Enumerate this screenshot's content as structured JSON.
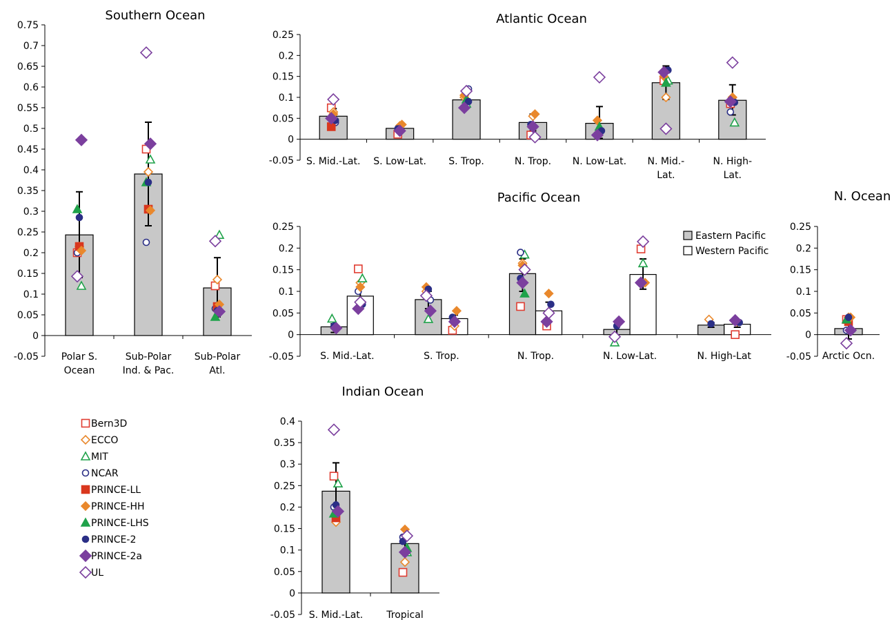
{
  "legend": {
    "items": [
      {
        "name": "Bern3D",
        "marker": "square",
        "filled": false,
        "color": "#e03c31"
      },
      {
        "name": "ECCO",
        "marker": "diamond",
        "filled": false,
        "color": "#e9882c"
      },
      {
        "name": "MIT",
        "marker": "triangle",
        "filled": false,
        "color": "#1fa24a"
      },
      {
        "name": "NCAR",
        "marker": "circle",
        "filled": false,
        "color": "#2b2f86"
      },
      {
        "name": "PRINCE-LL",
        "marker": "square",
        "filled": true,
        "color": "#d9371e"
      },
      {
        "name": "PRINCE-HH",
        "marker": "diamond",
        "filled": true,
        "color": "#e9882c"
      },
      {
        "name": "PRINCE-LHS",
        "marker": "triangle",
        "filled": true,
        "color": "#1fa24a"
      },
      {
        "name": "PRINCE-2",
        "marker": "circle",
        "filled": true,
        "color": "#2b2f86"
      },
      {
        "name": "PRINCE-2a",
        "marker": "diamond",
        "filled": true,
        "color": "#7b3f9e"
      },
      {
        "name": "UL",
        "marker": "diamond",
        "filled": false,
        "color": "#7b3f9e"
      }
    ]
  },
  "pacific_legend": [
    {
      "label": "Eastern Pacific",
      "fill": "#c8c8c8"
    },
    {
      "label": "Western Pacific",
      "fill": "#ffffff"
    }
  ],
  "chart_data": [
    {
      "type": "bar",
      "title": "Southern Ocean",
      "categories": [
        "Polar S.\nOcean",
        "Sub-Polar\nInd. & Pac.",
        "Sub-Polar\nAtl."
      ],
      "ylim": [
        -0.05,
        0.75
      ],
      "ticks": [
        "-0.05",
        "0",
        "0.05",
        "0.1",
        "0.15",
        "0.2",
        "0.25",
        "0.3",
        "0.35",
        "0.4",
        "0.45",
        "0.5",
        "0.55",
        "0.6",
        "0.65",
        "0.7",
        "0.75"
      ],
      "series": [
        {
          "values": [
            0.243,
            0.39,
            0.115
          ],
          "err": [
            [
              0.14,
              0.347
            ],
            [
              0.265,
              0.515
            ],
            [
              0.045,
              0.188
            ]
          ]
        }
      ],
      "points": [
        [
          [
            "Bern3D",
            0.2
          ],
          [
            "ECCO",
            0.215
          ],
          [
            "MIT",
            0.12
          ],
          [
            "NCAR",
            0.2
          ],
          [
            "PRINCE-LL",
            0.215
          ],
          [
            "PRINCE-HH",
            0.205
          ],
          [
            "PRINCE-LHS",
            0.305
          ],
          [
            "PRINCE-2",
            0.285
          ],
          [
            "PRINCE-2a",
            0.472
          ],
          [
            "UL",
            0.143
          ]
        ],
        [
          [
            "Bern3D",
            0.45
          ],
          [
            "ECCO",
            0.395
          ],
          [
            "MIT",
            0.425
          ],
          [
            "NCAR",
            0.225
          ],
          [
            "PRINCE-LL",
            0.305
          ],
          [
            "PRINCE-HH",
            0.302
          ],
          [
            "PRINCE-LHS",
            0.37
          ],
          [
            "PRINCE-2",
            0.37
          ],
          [
            "PRINCE-2a",
            0.463
          ],
          [
            "UL",
            0.683
          ]
        ],
        [
          [
            "Bern3D",
            0.12
          ],
          [
            "ECCO",
            0.135
          ],
          [
            "MIT",
            0.243
          ],
          [
            "NCAR",
            0.065
          ],
          [
            "PRINCE-LL",
            0.07
          ],
          [
            "PRINCE-HH",
            0.075
          ],
          [
            "PRINCE-LHS",
            0.045
          ],
          [
            "PRINCE-2",
            0.06
          ],
          [
            "PRINCE-2a",
            0.058
          ],
          [
            "UL",
            0.228
          ]
        ]
      ]
    },
    {
      "type": "bar",
      "title": "Atlantic Ocean",
      "categories": [
        "S. Mid.-Lat.",
        "S. Low-Lat.",
        "S. Trop.",
        "N. Trop.",
        "N. Low-Lat.",
        "N. Mid.-\nLat.",
        "N. High-\nLat."
      ],
      "ylim": [
        -0.05,
        0.25
      ],
      "ticks": [
        "-0.05",
        "0",
        "0.05",
        "0.1",
        "0.15",
        "0.2",
        "0.25"
      ],
      "series": [
        {
          "values": [
            0.055,
            0.026,
            0.094,
            0.04,
            0.038,
            0.135,
            0.093
          ],
          "err": [
            [
              0.035,
              0.073
            ],
            [
              0.018,
              0.034
            ],
            [
              0.075,
              0.112
            ],
            [
              0.02,
              0.06
            ],
            [
              0.002,
              0.078
            ],
            [
              0.095,
              0.175
            ],
            [
              0.058,
              0.13
            ]
          ]
        }
      ],
      "points": [
        [
          [
            "Bern3D",
            0.075
          ],
          [
            "ECCO",
            0.065
          ],
          [
            "NCAR",
            0.04
          ],
          [
            "PRINCE-LL",
            0.03
          ],
          [
            "PRINCE-HH",
            0.06
          ],
          [
            "PRINCE-2",
            0.045
          ],
          [
            "PRINCE-2a",
            0.05
          ],
          [
            "UL",
            0.095
          ]
        ],
        [
          [
            "Bern3D",
            0.012
          ],
          [
            "ECCO",
            0.032
          ],
          [
            "PRINCE-HH",
            0.035
          ],
          [
            "PRINCE-2",
            0.025
          ],
          [
            "PRINCE-2a",
            0.02
          ]
        ],
        [
          [
            "ECCO",
            0.1
          ],
          [
            "MIT",
            0.085
          ],
          [
            "NCAR",
            0.12
          ],
          [
            "PRINCE-HH",
            0.105
          ],
          [
            "PRINCE-LHS",
            0.095
          ],
          [
            "PRINCE-2",
            0.09
          ],
          [
            "PRINCE-2a",
            0.075
          ],
          [
            "UL",
            0.115
          ]
        ],
        [
          [
            "Bern3D",
            0.01
          ],
          [
            "ECCO",
            0.055
          ],
          [
            "PRINCE-HH",
            0.06
          ],
          [
            "PRINCE-2",
            0.035
          ],
          [
            "PRINCE-2a",
            0.03
          ],
          [
            "UL",
            0.005
          ]
        ],
        [
          [
            "PRINCE-HH",
            0.045
          ],
          [
            "PRINCE-LHS",
            0.03
          ],
          [
            "PRINCE-2",
            0.02
          ],
          [
            "PRINCE-2a",
            0.01
          ],
          [
            "UL",
            0.148
          ]
        ],
        [
          [
            "Bern3D",
            0.14
          ],
          [
            "ECCO",
            0.1
          ],
          [
            "MIT",
            0.14
          ],
          [
            "PRINCE-HH",
            0.15
          ],
          [
            "PRINCE-LHS",
            0.135
          ],
          [
            "PRINCE-2",
            0.165
          ],
          [
            "PRINCE-2a",
            0.16
          ],
          [
            "UL",
            0.025
          ]
        ],
        [
          [
            "Bern3D",
            0.085
          ],
          [
            "ECCO",
            0.1
          ],
          [
            "MIT",
            0.04
          ],
          [
            "NCAR",
            0.065
          ],
          [
            "PRINCE-HH",
            0.1
          ],
          [
            "PRINCE-2",
            0.088
          ],
          [
            "PRINCE-2a",
            0.09
          ],
          [
            "UL",
            0.183
          ]
        ]
      ]
    },
    {
      "type": "bar",
      "title": "Pacific Ocean",
      "categories": [
        "S. Mid.-Lat.",
        "S. Trop.",
        "N. Trop.",
        "N. Low-Lat.",
        "N. High-Lat"
      ],
      "ylim": [
        -0.05,
        0.25
      ],
      "ticks": [
        "-0.05",
        "0",
        "0.05",
        "0.1",
        "0.15",
        "0.2",
        "0.25"
      ],
      "series": [
        {
          "name": "Eastern Pacific",
          "values": [
            0.018,
            0.081,
            0.141,
            0.012,
            0.022
          ],
          "err": [
            [
              0.005,
              0.025
            ],
            [
              0.06,
              0.1
            ],
            [
              0.1,
              0.175
            ],
            [
              -0.005,
              0.02
            ],
            [
              0.017,
              0.028
            ]
          ]
        },
        {
          "name": "Western Pacific",
          "values": [
            0.089,
            0.037,
            0.055,
            0.139,
            0.024
          ],
          "err": [
            [
              0.06,
              0.12
            ],
            [
              0.02,
              0.045
            ],
            [
              0.03,
              0.075
            ],
            [
              0.105,
              0.175
            ],
            [
              0.017,
              0.03
            ]
          ]
        }
      ],
      "points": [
        [
          [
            [
              "MIT",
              0.037
            ],
            [
              "PRINCE-2",
              0.02
            ],
            [
              "PRINCE-2a",
              0.015
            ]
          ],
          [
            [
              "Bern3D",
              0.152
            ],
            [
              "ECCO",
              0.12
            ],
            [
              "MIT",
              0.13
            ],
            [
              "NCAR",
              0.1
            ],
            [
              "PRINCE-HH",
              0.11
            ],
            [
              "PRINCE-2",
              0.07
            ],
            [
              "PRINCE-2a",
              0.06
            ],
            [
              "UL",
              0.075
            ]
          ]
        ],
        [
          [
            [
              "ECCO",
              0.1
            ],
            [
              "MIT",
              0.036
            ],
            [
              "NCAR",
              0.08
            ],
            [
              "PRINCE-HH",
              0.11
            ],
            [
              "PRINCE-2",
              0.105
            ],
            [
              "PRINCE-2a",
              0.055
            ],
            [
              "UL",
              0.09
            ]
          ],
          [
            [
              "Bern3D",
              0.01
            ],
            [
              "ECCO",
              0.02
            ],
            [
              "PRINCE-HH",
              0.055
            ],
            [
              "PRINCE-2",
              0.04
            ],
            [
              "PRINCE-2a",
              0.03
            ]
          ]
        ],
        [
          [
            [
              "Bern3D",
              0.065
            ],
            [
              "ECCO",
              0.165
            ],
            [
              "MIT",
              0.185
            ],
            [
              "NCAR",
              0.19
            ],
            [
              "PRINCE-HH",
              0.16
            ],
            [
              "PRINCE-LHS",
              0.095
            ],
            [
              "PRINCE-2",
              0.13
            ],
            [
              "PRINCE-2a",
              0.12
            ],
            [
              "UL",
              0.15
            ]
          ],
          [
            [
              "Bern3D",
              0.02
            ],
            [
              "PRINCE-HH",
              0.095
            ],
            [
              "PRINCE-2",
              0.07
            ],
            [
              "PRINCE-2a",
              0.03
            ],
            [
              "UL",
              0.05
            ]
          ]
        ],
        [
          [
            [
              "MIT",
              -0.018
            ],
            [
              "PRINCE-2",
              0.02
            ],
            [
              "PRINCE-2a",
              0.03
            ],
            [
              "UL",
              -0.005
            ]
          ],
          [
            [
              "Bern3D",
              0.198
            ],
            [
              "MIT",
              0.165
            ],
            [
              "PRINCE-HH",
              0.12
            ],
            [
              "PRINCE-2a",
              0.12
            ],
            [
              "UL",
              0.215
            ]
          ]
        ],
        [
          [
            [
              "ECCO",
              0.035
            ],
            [
              "PRINCE-2",
              0.025
            ]
          ],
          [
            [
              "Bern3D",
              0.0
            ],
            [
              "ECCO",
              0.03
            ],
            [
              "PRINCE-2",
              0.028
            ],
            [
              "PRINCE-2a",
              0.033
            ]
          ]
        ]
      ]
    },
    {
      "type": "bar",
      "title": "N. Ocean",
      "categories": [
        "Arctic Ocn."
      ],
      "ylim": [
        -0.05,
        0.25
      ],
      "ticks": [
        "-0.05",
        "0",
        "0.05",
        "0.1",
        "0.15",
        "0.2",
        "0.25"
      ],
      "series": [
        {
          "values": [
            0.014
          ],
          "err": [
            [
              -0.01,
              0.04
            ]
          ]
        }
      ],
      "points": [
        [
          [
            "Bern3D",
            0.035
          ],
          [
            "ECCO",
            0.04
          ],
          [
            "MIT",
            0.015
          ],
          [
            "NCAR",
            0.01
          ],
          [
            "PRINCE-LL",
            0.03
          ],
          [
            "PRINCE-HH",
            0.04
          ],
          [
            "PRINCE-LHS",
            0.035
          ],
          [
            "PRINCE-2",
            0.04
          ],
          [
            "PRINCE-2a",
            0.01
          ],
          [
            "UL",
            -0.02
          ]
        ]
      ]
    },
    {
      "type": "bar",
      "title": "Indian Ocean",
      "categories": [
        "S. Mid.-Lat.",
        "Tropical"
      ],
      "ylim": [
        -0.05,
        0.4
      ],
      "ticks": [
        "-0.05",
        "0",
        "0.05",
        "0.1",
        "0.15",
        "0.2",
        "0.25",
        "0.3",
        "0.35",
        "0.4"
      ],
      "series": [
        {
          "values": [
            0.237,
            0.115
          ],
          "err": [
            [
              0.17,
              0.303
            ],
            [
              0.095,
              0.135
            ]
          ]
        }
      ],
      "points": [
        [
          [
            "Bern3D",
            0.272
          ],
          [
            "ECCO",
            0.165
          ],
          [
            "MIT",
            0.255
          ],
          [
            "NCAR",
            0.2
          ],
          [
            "PRINCE-LL",
            0.175
          ],
          [
            "PRINCE-HH",
            0.19
          ],
          [
            "PRINCE-LHS",
            0.185
          ],
          [
            "PRINCE-2",
            0.205
          ],
          [
            "PRINCE-2a",
            0.19
          ],
          [
            "UL",
            0.38
          ]
        ],
        [
          [
            "Bern3D",
            0.048
          ],
          [
            "ECCO",
            0.072
          ],
          [
            "MIT",
            0.095
          ],
          [
            "NCAR",
            0.13
          ],
          [
            "PRINCE-HH",
            0.148
          ],
          [
            "PRINCE-LHS",
            0.105
          ],
          [
            "PRINCE-2",
            0.12
          ],
          [
            "PRINCE-2a",
            0.095
          ],
          [
            "UL",
            0.133
          ]
        ]
      ]
    }
  ]
}
